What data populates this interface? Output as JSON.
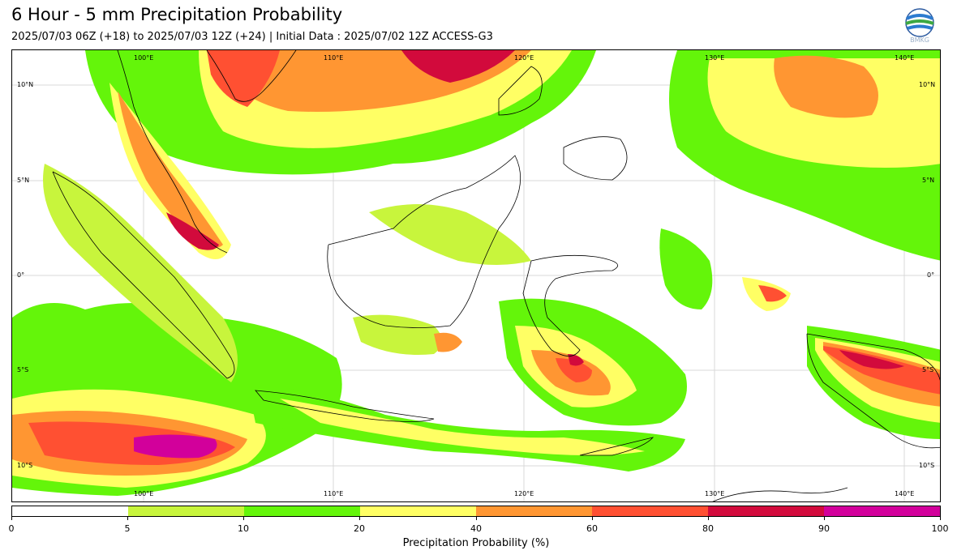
{
  "header": {
    "title": "6 Hour - 5 mm Precipitation Probability",
    "subtitle": "2025/07/03 06Z (+18) to 2025/07/03 12Z (+24) | Initial Data : 2025/07/02 12Z ACCESS-G3",
    "logo_name": "bmkg-logo",
    "logo_text": "BMKG"
  },
  "map": {
    "lon_labels_top": [
      "100°E",
      "110°E",
      "120°E",
      "130°E",
      "140°E"
    ],
    "lon_labels_bottom": [
      "100°E",
      "110°E",
      "120°E",
      "130°E",
      "140°E"
    ],
    "lat_labels_left": [
      "10°N",
      "5°N",
      "0°",
      "5°S",
      "10°S"
    ],
    "lat_labels_right": [
      "10°N",
      "5°N",
      "0°",
      "5°S",
      "10°S"
    ]
  },
  "colorbar": {
    "ticks": [
      "0",
      "5",
      "10",
      "20",
      "40",
      "60",
      "80",
      "90",
      "100"
    ],
    "colors": [
      "#ffffff",
      "#c8f53c",
      "#64f50a",
      "#ffff64",
      "#ff9632",
      "#ff5032",
      "#d20a3c",
      "#d2009b"
    ],
    "label": "Precipitation Probability (%)"
  }
}
